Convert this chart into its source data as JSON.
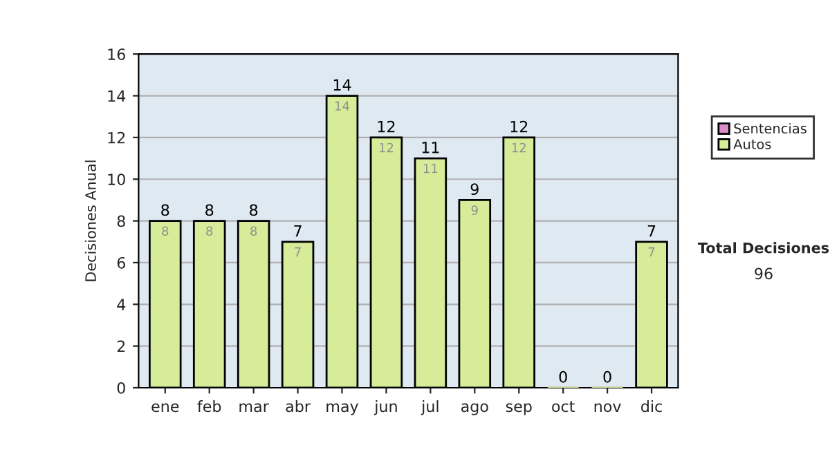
{
  "chart_data": {
    "type": "bar",
    "stacked": true,
    "ylabel": "Decisiones Anual",
    "categories": [
      "ene",
      "feb",
      "mar",
      "abr",
      "may",
      "jun",
      "jul",
      "ago",
      "sep",
      "oct",
      "nov",
      "dic"
    ],
    "series": [
      {
        "name": "Sentencias",
        "color": "#dc8cc8",
        "values": [
          0,
          0,
          0,
          0,
          0,
          0,
          0,
          0,
          0,
          0,
          0,
          0
        ]
      },
      {
        "name": "Autos",
        "color": "#d6ec98",
        "values": [
          8,
          8,
          8,
          7,
          14,
          12,
          11,
          9,
          12,
          0,
          0,
          7
        ],
        "value_labels": [
          "8",
          "8",
          "8",
          "7",
          "14",
          "12",
          "11",
          "9",
          "12",
          null,
          null,
          "7"
        ]
      }
    ],
    "totals": [
      "8",
      "8",
      "8",
      "7",
      "14",
      "12",
      "11",
      "9",
      "12",
      "0",
      "0",
      "7"
    ],
    "ylim": [
      0,
      16
    ],
    "yticks": [
      0,
      2,
      4,
      6,
      8,
      10,
      12,
      14,
      16
    ],
    "grid": "y",
    "legend": "right",
    "annotations": [
      "Total Decisiones",
      "96"
    ]
  }
}
